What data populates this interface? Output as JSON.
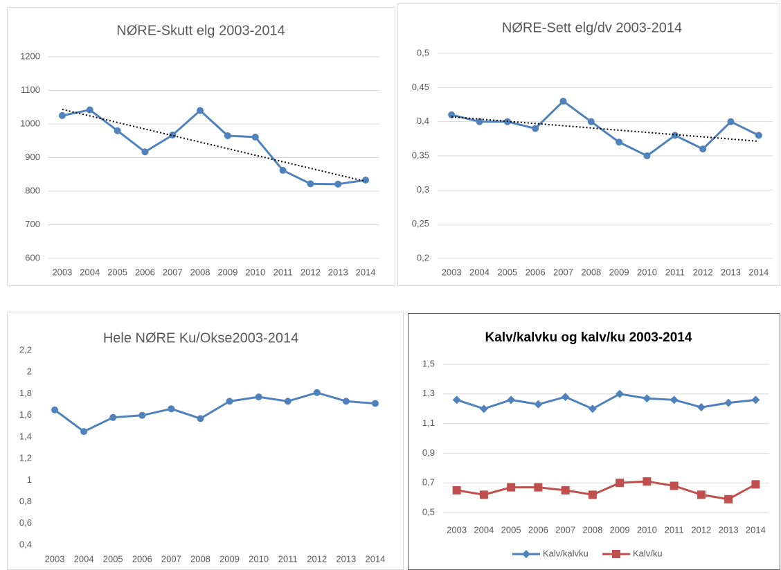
{
  "chart_data": [
    {
      "type": "line",
      "title": "NØRE-Skutt elg 2003-2014",
      "categories": [
        "2003",
        "2004",
        "2005",
        "2006",
        "2007",
        "2008",
        "2009",
        "2010",
        "2011",
        "2012",
        "2013",
        "2014"
      ],
      "values": [
        1025,
        1042,
        980,
        917,
        967,
        1040,
        965,
        961,
        862,
        822,
        821,
        833
      ],
      "color": "#4f81bd",
      "marker": "circle",
      "trendline": true,
      "ylim": [
        600,
        1200
      ],
      "yticks": [
        600,
        700,
        800,
        900,
        1000,
        1100,
        1200
      ],
      "grid": true
    },
    {
      "type": "line",
      "title": "NØRE-Sett elg/dv 2003-2014",
      "categories": [
        "2003",
        "2004",
        "2005",
        "2006",
        "2007",
        "2008",
        "2009",
        "2010",
        "2011",
        "2012",
        "2013",
        "2014"
      ],
      "values": [
        0.41,
        0.4,
        0.4,
        0.39,
        0.43,
        0.4,
        0.37,
        0.35,
        0.38,
        0.36,
        0.4,
        0.38
      ],
      "color": "#4f81bd",
      "marker": "circle",
      "trendline": true,
      "ylim": [
        0.2,
        0.5
      ],
      "yticks": [
        {
          "value": 0.2,
          "label": "0,2"
        },
        {
          "value": 0.25,
          "label": "0,25"
        },
        {
          "value": 0.3,
          "label": "0,3"
        },
        {
          "value": 0.35,
          "label": "0,35"
        },
        {
          "value": 0.4,
          "label": "0,4"
        },
        {
          "value": 0.45,
          "label": "0,45"
        },
        {
          "value": 0.5,
          "label": "0,5"
        }
      ],
      "grid": true
    },
    {
      "type": "line",
      "title": "Hele NØRE Ku/Okse2003-2014",
      "categories": [
        "2003",
        "2004",
        "2005",
        "2006",
        "2007",
        "2008",
        "2009",
        "2010",
        "2011",
        "2012",
        "2013",
        "2014"
      ],
      "values": [
        1.65,
        1.45,
        1.58,
        1.6,
        1.66,
        1.57,
        1.73,
        1.77,
        1.73,
        1.81,
        1.73,
        1.71
      ],
      "color": "#4f81bd",
      "marker": "circle",
      "trendline": false,
      "ylim": [
        0.4,
        2.2
      ],
      "yticks": [
        {
          "value": 0.4,
          "label": "0,4"
        },
        {
          "value": 0.6,
          "label": "0,6"
        },
        {
          "value": 0.8,
          "label": "0,8"
        },
        1,
        {
          "value": 1.2,
          "label": "1,2"
        },
        {
          "value": 1.4,
          "label": "1,4"
        },
        {
          "value": 1.6,
          "label": "1,6"
        },
        {
          "value": 1.8,
          "label": "1,8"
        },
        2,
        {
          "value": 2.2,
          "label": "2,2"
        }
      ],
      "grid": false
    },
    {
      "type": "line",
      "title": "Kalv/kalvku og kalv/ku 2003-2014",
      "title_bold": true,
      "categories": [
        "2003",
        "2004",
        "2005",
        "2006",
        "2007",
        "2008",
        "2009",
        "2010",
        "2011",
        "2012",
        "2013",
        "2014"
      ],
      "series": [
        {
          "name": "Kalv/kalvku",
          "color": "#4f81bd",
          "marker": "diamond",
          "values": [
            1.26,
            1.2,
            1.26,
            1.23,
            1.28,
            1.2,
            1.3,
            1.27,
            1.26,
            1.21,
            1.24,
            1.26
          ]
        },
        {
          "name": "Kalv/ku",
          "color": "#c0504d",
          "marker": "square",
          "values": [
            0.65,
            0.62,
            0.67,
            0.67,
            0.65,
            0.62,
            0.7,
            0.71,
            0.68,
            0.62,
            0.59,
            0.69
          ]
        }
      ],
      "ylim": [
        0.5,
        1.5
      ],
      "yticks": [
        {
          "value": 0.5,
          "label": "0,5"
        },
        {
          "value": 0.7,
          "label": "0,7"
        },
        {
          "value": 0.9,
          "label": "0,9"
        },
        {
          "value": 1.1,
          "label": "1,1"
        },
        {
          "value": 1.3,
          "label": "1,3"
        },
        {
          "value": 1.5,
          "label": "1,5"
        }
      ],
      "grid": true,
      "legend": "bottom"
    }
  ]
}
